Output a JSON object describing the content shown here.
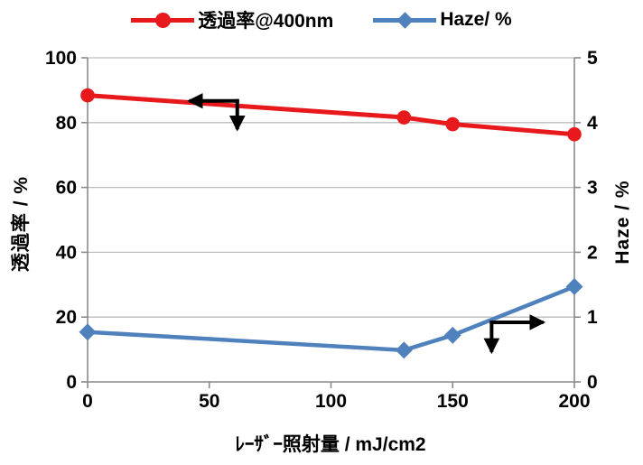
{
  "chart_data": {
    "type": "line",
    "title": "",
    "x": [
      0,
      130,
      150,
      200
    ],
    "xlim": [
      0,
      200
    ],
    "x_ticks": [
      0,
      50,
      100,
      150,
      200
    ],
    "xlabel": "ﾚｰｻﾞｰ照射量  / mJ/cm2",
    "y_left": {
      "label": "透過率 / %",
      "lim": [
        0,
        100
      ],
      "ticks": [
        0,
        20,
        40,
        60,
        80,
        100
      ]
    },
    "y_right": {
      "label": "Haze / %",
      "lim": [
        0,
        5
      ],
      "ticks": [
        0,
        1,
        2,
        3,
        4,
        5
      ]
    },
    "grid": "horizontal",
    "legend_position": "top-center",
    "series": [
      {
        "name": "透過率@400nm",
        "axis": "left",
        "marker": "circle",
        "color": "#e8191c",
        "values": [
          88.4,
          81.6,
          79.5,
          76.4
        ]
      },
      {
        "name": "Haze/ %",
        "axis": "right",
        "marker": "diamond",
        "color": "#4f81bd",
        "values": [
          0.77,
          0.49,
          0.72,
          1.47
        ]
      }
    ],
    "annotations": [
      {
        "name": "transmittance-left-axis-arrow",
        "corner_x": 61.5,
        "corner_y": 86.7,
        "h_to_x": 42.5,
        "v_to_y": 78.5,
        "h_dir": "left"
      },
      {
        "name": "haze-right-axis-arrow",
        "corner_x": 166.0,
        "corner_y": 18.4,
        "h_to_x": 186.5,
        "v_to_y": 9.8,
        "h_dir": "right"
      }
    ],
    "colors": {
      "gridline": "#bdbdbd",
      "axis": "#8a8a8a",
      "tick_text": "#000000",
      "arrow": "#000000",
      "background": "#ffffff"
    }
  }
}
